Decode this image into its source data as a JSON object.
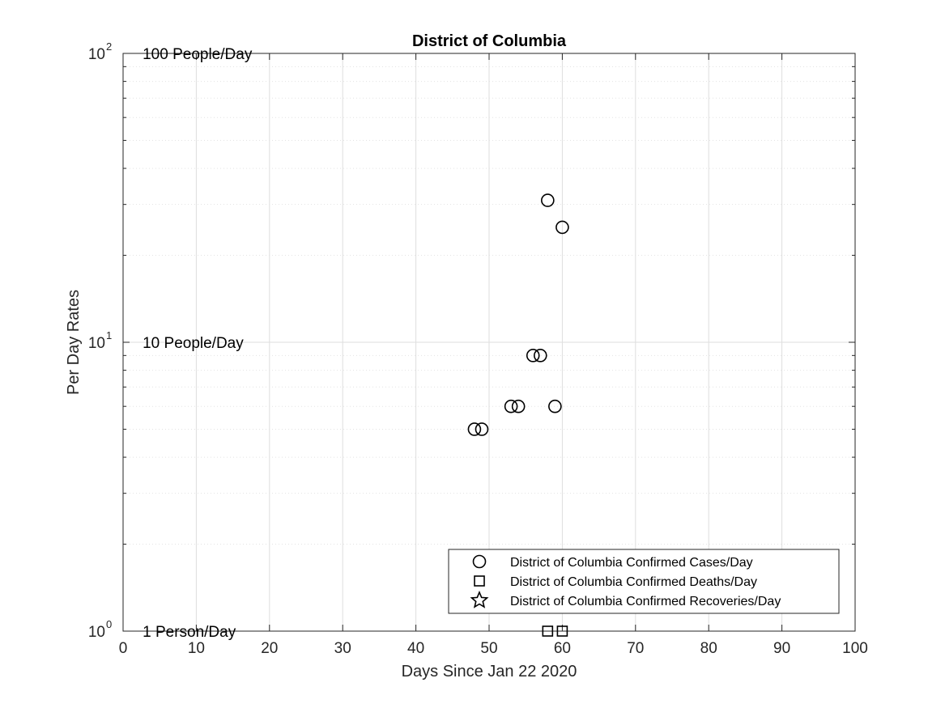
{
  "chart_data": {
    "type": "scatter",
    "title": "District of Columbia",
    "xlabel": "Days Since Jan 22 2020",
    "ylabel": "Per Day Rates",
    "xlim": [
      0,
      100
    ],
    "ylim": [
      1,
      100
    ],
    "yscale": "log",
    "grid": true,
    "x_ticks": [
      0,
      10,
      20,
      30,
      40,
      50,
      60,
      70,
      80,
      90,
      100
    ],
    "y_ticks": [
      {
        "value": 1,
        "base": "10",
        "exp": "0"
      },
      {
        "value": 10,
        "base": "10",
        "exp": "1"
      },
      {
        "value": 100,
        "base": "10",
        "exp": "2"
      }
    ],
    "annotations": [
      {
        "text": "100 People/Day",
        "x": 3,
        "y": 100
      },
      {
        "text": "10 People/Day",
        "x": 3,
        "y": 10
      },
      {
        "text": "1 Person/Day",
        "x": 3,
        "y": 1
      }
    ],
    "legend_position": "bottom-right",
    "series": [
      {
        "name": "District of Columbia Confirmed Cases/Day",
        "marker": "circle",
        "color": "#000000",
        "points": [
          {
            "x": 48,
            "y": 5
          },
          {
            "x": 49,
            "y": 5
          },
          {
            "x": 53,
            "y": 6
          },
          {
            "x": 54,
            "y": 6
          },
          {
            "x": 56,
            "y": 9
          },
          {
            "x": 57,
            "y": 9
          },
          {
            "x": 58,
            "y": 31
          },
          {
            "x": 59,
            "y": 6
          },
          {
            "x": 60,
            "y": 25
          }
        ]
      },
      {
        "name": "District of Columbia Confirmed Deaths/Day",
        "marker": "square",
        "color": "#000000",
        "points": [
          {
            "x": 58,
            "y": 1
          },
          {
            "x": 60,
            "y": 1
          }
        ]
      },
      {
        "name": "District of Columbia Confirmed Recoveries/Day",
        "marker": "star",
        "color": "#000000",
        "points": []
      }
    ]
  }
}
